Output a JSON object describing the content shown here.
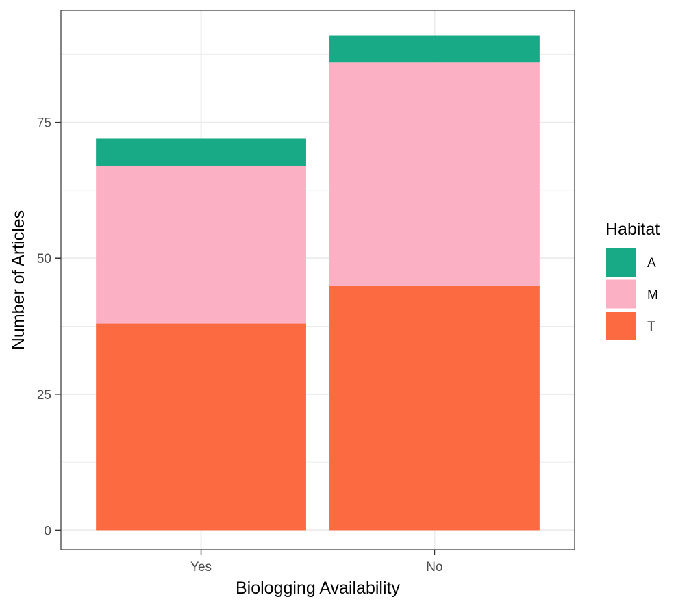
{
  "chart_data": {
    "type": "bar",
    "stacked": true,
    "categories": [
      "Yes",
      "No"
    ],
    "series": [
      {
        "name": "T",
        "values": [
          38,
          45
        ],
        "color": "#FC6A42"
      },
      {
        "name": "M",
        "values": [
          29,
          41
        ],
        "color": "#FCB0C3"
      },
      {
        "name": "A",
        "values": [
          5,
          5
        ],
        "color": "#18A986"
      }
    ],
    "xlabel": "Biologging Availability",
    "ylabel": "Number of Articles",
    "ylim": [
      -3.6,
      95.6
    ],
    "yticks": [
      0,
      25,
      50,
      75
    ],
    "ytick_labels": [
      "0",
      "25",
      "50",
      "75"
    ],
    "grid": true,
    "legend": {
      "title": "Habitat",
      "position": "right",
      "entries": [
        {
          "label": "A",
          "color": "#18A986"
        },
        {
          "label": "M",
          "color": "#FCB0C3"
        },
        {
          "label": "T",
          "color": "#FC6A42"
        }
      ]
    }
  }
}
